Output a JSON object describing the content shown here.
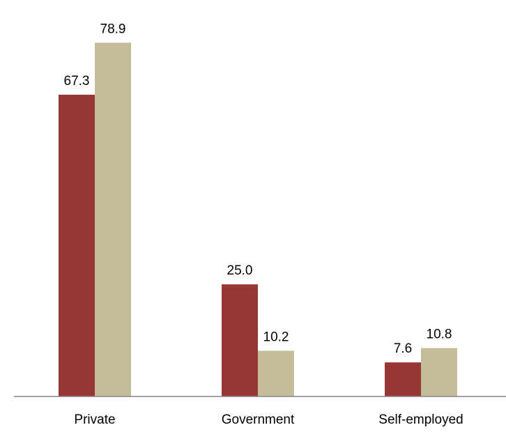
{
  "chart_data": {
    "type": "bar",
    "title": "",
    "xlabel": "",
    "ylabel": "",
    "categories": [
      "Private",
      "Government",
      "Self-employed"
    ],
    "ylim": [
      0,
      85
    ],
    "grid": false,
    "legend": "none",
    "series": [
      {
        "values": [
          67.3,
          25.0,
          7.6
        ],
        "labels": [
          "67.3",
          "25.0",
          "7.6"
        ],
        "color": "#953735"
      },
      {
        "values": [
          78.9,
          10.2,
          10.8
        ],
        "labels": [
          "78.9",
          "10.2",
          "10.8"
        ],
        "color": "#c4bd97"
      }
    ],
    "axis_color": "#868686",
    "label_color": "#000000"
  }
}
